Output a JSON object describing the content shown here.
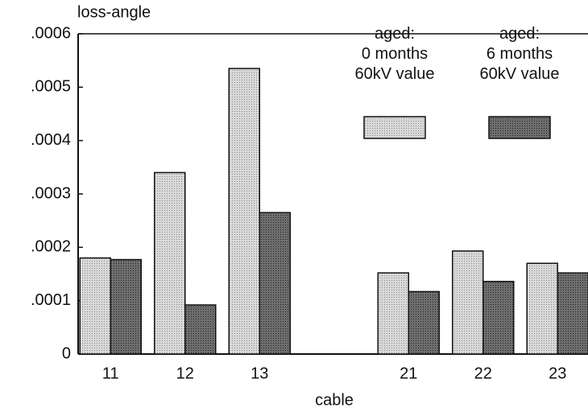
{
  "chart_data": {
    "type": "bar",
    "ylabel": "loss-angle",
    "xlabel": "cable",
    "categories": [
      "11",
      "12",
      "13",
      null,
      "21",
      "22",
      "23"
    ],
    "series": [
      {
        "name": "aged:\n0 months\n60kV value",
        "color": "#d9d9d9",
        "values": [
          0.00018,
          0.00034,
          0.000535,
          null,
          0.000152,
          0.000193,
          0.00017
        ]
      },
      {
        "name": "aged:\n6 months\n60kV value",
        "color": "#6e6e6e",
        "values": [
          0.000177,
          9.2e-05,
          0.000265,
          null,
          0.000117,
          0.000136,
          0.000152
        ]
      }
    ],
    "ylim": [
      0,
      0.0006
    ],
    "yticks": [
      0,
      {
        "value": 0.0001,
        "label": ".0001"
      },
      {
        "value": 0.0002,
        "label": ".0002"
      },
      {
        "value": 0.0003,
        "label": ".0003"
      },
      {
        "value": 0.0004,
        "label": ".0004"
      },
      {
        "value": 0.0005,
        "label": ".0005"
      },
      {
        "value": 0.0006,
        "label": ".0006"
      }
    ],
    "legend": "upper right"
  }
}
